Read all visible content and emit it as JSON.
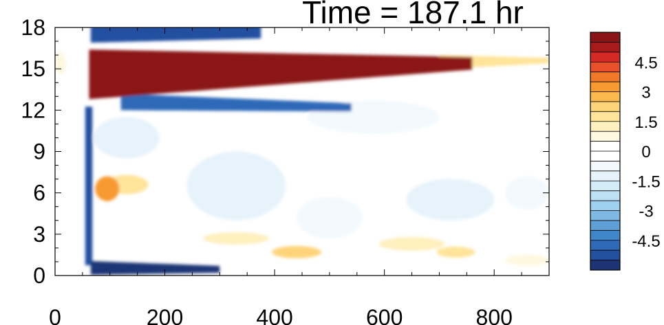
{
  "chart_data": {
    "type": "heatmap",
    "title": "Time = 187.1 hr",
    "x_ticks": [
      0,
      200,
      400,
      600,
      800
    ],
    "y_ticks": [
      0,
      3,
      6,
      9,
      12,
      15,
      18
    ],
    "xlim": [
      0,
      900
    ],
    "ylim": [
      0,
      18
    ],
    "colorbar": {
      "levels": [
        -6,
        -5.5,
        -5,
        -4.5,
        -4,
        -3.5,
        -3,
        -2.5,
        -2,
        -1.5,
        -1,
        -0.5,
        0,
        0.5,
        1,
        1.5,
        2,
        2.5,
        3,
        3.5,
        4,
        4.5,
        5,
        5.5,
        6
      ],
      "colors": [
        "#1c3474",
        "#2450a0",
        "#2f69b8",
        "#3f85c8",
        "#5e9fd5",
        "#7fb8e2",
        "#9fd0ef",
        "#bde0f5",
        "#d4ebf8",
        "#e6f3fb",
        "#f3f9fd",
        "#ffffff",
        "#ffffff",
        "#fff8e0",
        "#fff0c0",
        "#ffe49a",
        "#fdd47a",
        "#fbb84c",
        "#f89a30",
        "#f2782a",
        "#e8512c",
        "#d42a25",
        "#a81b1d",
        "#8a1518"
      ],
      "tick_labels": [
        "4.5",
        "3",
        "1.5",
        "0",
        "-1.5",
        "-3",
        "-4.5"
      ],
      "tick_values": [
        4.5,
        3,
        1.5,
        0,
        -1.5,
        -3,
        -4.5
      ]
    },
    "features": [
      {
        "value": 5.8,
        "kind": "band",
        "x": [
          62,
          760
        ],
        "y_center_start": 14.6,
        "y_center_end": 15.4,
        "thickness_start": 3.6,
        "thickness_end": 0.9
      },
      {
        "value": 1.5,
        "kind": "band",
        "x": [
          700,
          900
        ],
        "y_center_start": 15.5,
        "y_center_end": 15.6,
        "thickness_start": 1.0,
        "thickness_end": 0.4
      },
      {
        "value": -4.8,
        "kind": "band",
        "x": [
          120,
          540
        ],
        "y_center_start": 12.6,
        "y_center_end": 12.2,
        "thickness_start": 1.2,
        "thickness_end": 0.6
      },
      {
        "value": -5.2,
        "kind": "band",
        "x": [
          65,
          375
        ],
        "y_center_start": 17.5,
        "y_center_end": 17.7,
        "thickness_start": 1.2,
        "thickness_end": 1.0
      },
      {
        "value": -5.8,
        "kind": "band",
        "x": [
          65,
          300
        ],
        "y_center_start": 0.55,
        "y_center_end": 0.45,
        "thickness_start": 1.0,
        "thickness_end": 0.5
      },
      {
        "value": -5.5,
        "kind": "band",
        "x": [
          55,
          68
        ],
        "y_center_start": 6.5,
        "y_center_end": 6.5,
        "thickness_start": 11.5,
        "thickness_end": 11.5
      },
      {
        "value": 3,
        "kind": "blob",
        "x": 95,
        "y": 6.3,
        "rx": 22,
        "ry": 0.9
      },
      {
        "value": 1.8,
        "kind": "blob",
        "x": 130,
        "y": 6.6,
        "rx": 40,
        "ry": 0.7
      },
      {
        "value": 2,
        "kind": "blob",
        "x": 440,
        "y": 1.7,
        "rx": 45,
        "ry": 0.45
      },
      {
        "value": 1.8,
        "kind": "blob",
        "x": 730,
        "y": 1.7,
        "rx": 35,
        "ry": 0.4
      },
      {
        "value": 1.2,
        "kind": "blob",
        "x": 330,
        "y": 2.7,
        "rx": 60,
        "ry": 0.45
      },
      {
        "value": 1,
        "kind": "blob",
        "x": 650,
        "y": 2.3,
        "rx": 60,
        "ry": 0.5
      },
      {
        "value": 0.8,
        "kind": "blob",
        "x": 860,
        "y": 1.1,
        "rx": 40,
        "ry": 0.4
      },
      {
        "value": 0.8,
        "kind": "blob",
        "x": 10,
        "y": 15.4,
        "rx": 10,
        "ry": 0.8
      },
      {
        "value": -1.3,
        "kind": "blob",
        "x": 130,
        "y": 10,
        "rx": 60,
        "ry": 1.5
      },
      {
        "value": -1,
        "kind": "blob",
        "x": 580,
        "y": 11.5,
        "rx": 120,
        "ry": 1.2
      },
      {
        "value": -1.4,
        "kind": "blob",
        "x": 720,
        "y": 5.5,
        "rx": 80,
        "ry": 1.5
      },
      {
        "value": -1.2,
        "kind": "blob",
        "x": 330,
        "y": 6.5,
        "rx": 90,
        "ry": 2.5
      },
      {
        "value": -0.9,
        "kind": "blob",
        "x": 500,
        "y": 4.2,
        "rx": 60,
        "ry": 1.5
      },
      {
        "value": -1,
        "kind": "blob",
        "x": 860,
        "y": 6,
        "rx": 40,
        "ry": 1.2
      }
    ]
  }
}
